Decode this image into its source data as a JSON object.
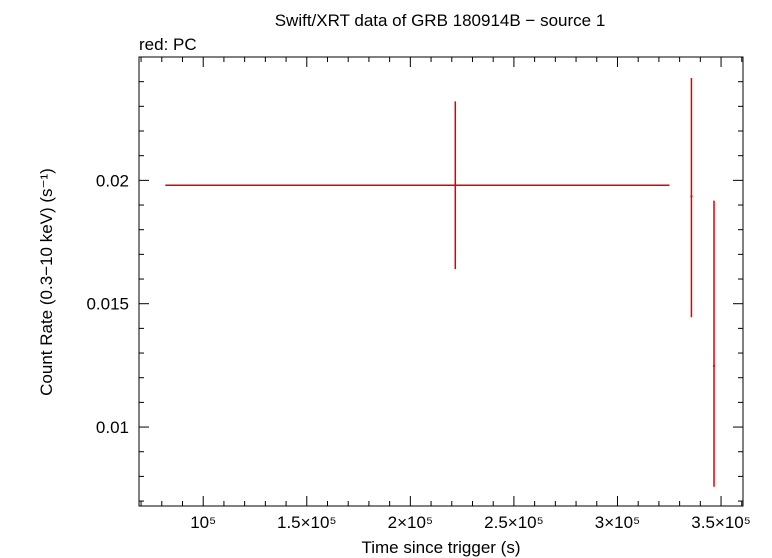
{
  "chart_data": {
    "type": "errorbar",
    "title": "Swift/XRT data of GRB 180914B − source 1",
    "subtitle": "red: PC",
    "x_label": "Time since trigger (s)",
    "y_label": "Count Rate (0.3−10 keV) (s⁻¹)",
    "series": [
      {
        "color": "#e00000",
        "x": [
          221700,
          335700,
          346600
        ],
        "xerr_minus": [
          140000,
          500,
          500
        ],
        "xerr_plus": [
          103400,
          500,
          500
        ],
        "values": [
          0.0198,
          0.01935,
          0.01248
        ],
        "yerr_minus": [
          0.0034,
          0.0049,
          0.0049
        ],
        "yerr_plus": [
          0.0034,
          0.0048,
          0.0067
        ]
      }
    ],
    "xlim": [
      69000,
      360600
    ],
    "ylim": [
      0.0068,
      0.025
    ],
    "xticks": [
      {
        "value": 100000,
        "label": "10⁵"
      },
      {
        "value": 150000,
        "label": "1.5×10⁵"
      },
      {
        "value": 200000,
        "label": "2×10⁵"
      },
      {
        "value": 250000,
        "label": "2.5×10⁵"
      },
      {
        "value": 300000,
        "label": "3×10⁵"
      },
      {
        "value": 350000,
        "label": "3.5×10⁵"
      }
    ],
    "yticks": [
      0.01,
      0.015,
      0.02
    ],
    "xminorticks": [
      70000,
      80000,
      90000,
      110000,
      120000,
      130000,
      140000,
      160000,
      170000,
      180000,
      190000,
      210000,
      220000,
      230000,
      240000,
      260000,
      270000,
      280000,
      290000,
      310000,
      320000,
      330000,
      340000,
      360000
    ],
    "yminorticks": [
      0.007,
      0.008,
      0.009,
      0.011,
      0.012,
      0.013,
      0.014,
      0.016,
      0.017,
      0.018,
      0.019,
      0.021,
      0.022,
      0.023,
      0.024
    ]
  }
}
